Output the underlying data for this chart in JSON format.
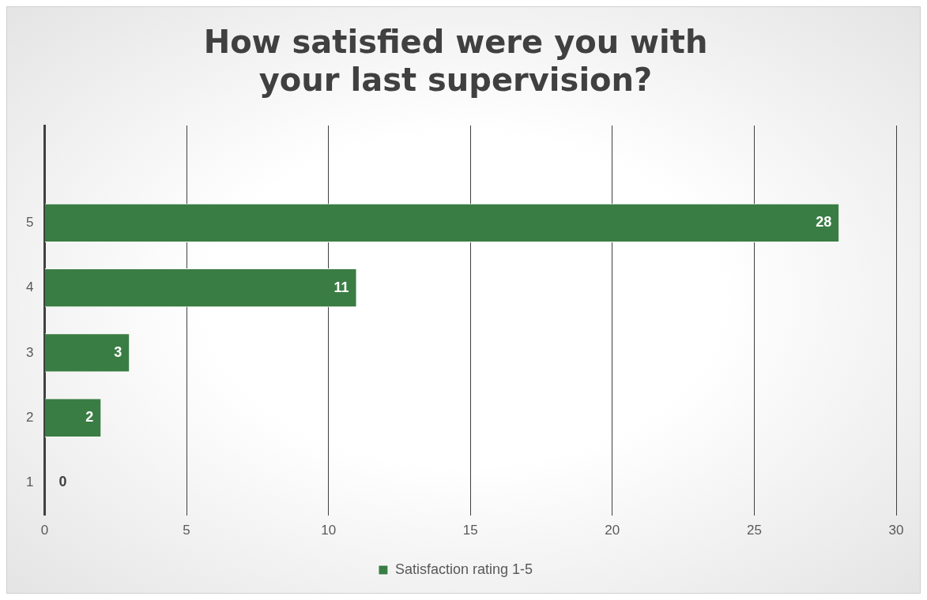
{
  "chart_data": {
    "type": "bar",
    "orientation": "horizontal",
    "title": "How satisfied were you with your last supervision?",
    "categories": [
      null,
      "5",
      "4",
      "3",
      "2",
      "1"
    ],
    "series": [
      {
        "name": "Satisfaction rating 1-5",
        "color": "#3a7d44",
        "values": [
          null,
          28,
          11,
          3,
          2,
          0
        ]
      }
    ],
    "xlim": [
      0,
      30
    ],
    "xticks": [
      0,
      5,
      10,
      15,
      20,
      25,
      30
    ],
    "grid": "x",
    "legend": "bottom",
    "data_labels": true
  }
}
